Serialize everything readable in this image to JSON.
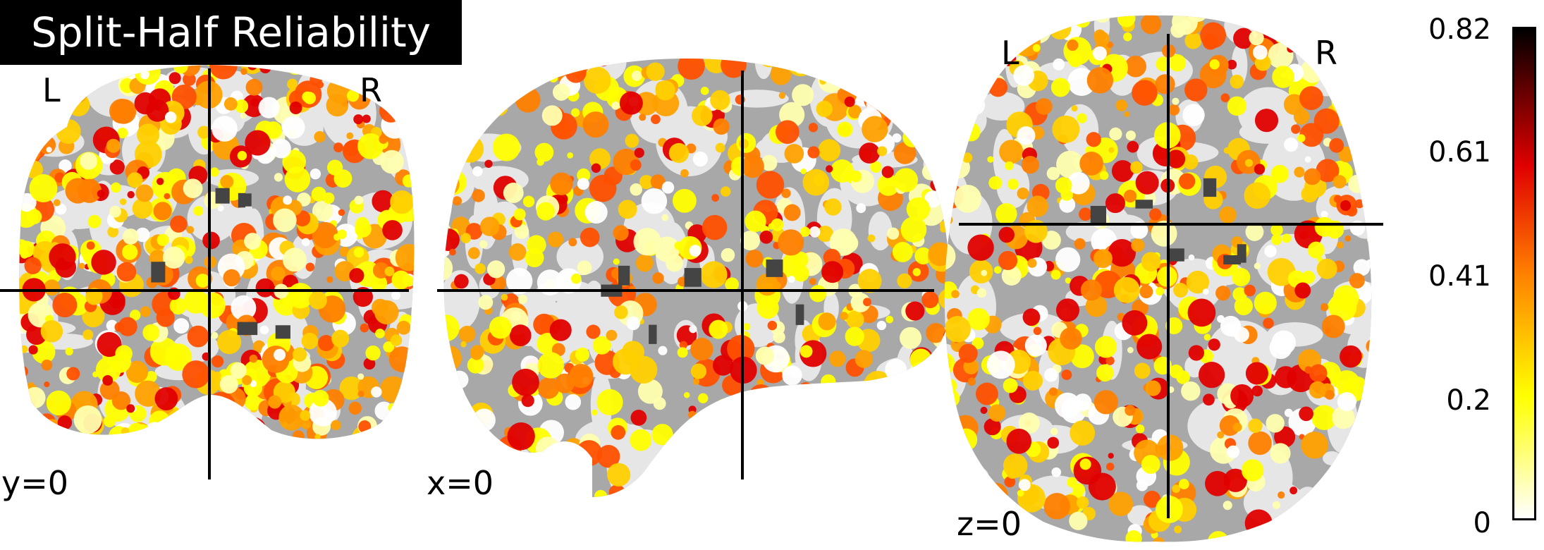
{
  "title": "Split-Half Reliability",
  "views": [
    {
      "name": "coronal",
      "slice_label": "y=0",
      "left_marker": "L",
      "right_marker": "R"
    },
    {
      "name": "sagittal",
      "slice_label": "x=0"
    },
    {
      "name": "axial",
      "slice_label": "z=0",
      "left_marker": "L",
      "right_marker": "R"
    }
  ],
  "colorbar": {
    "colormap": "hot_r",
    "min": 0,
    "max": 0.82,
    "tick_labels": [
      "0.82",
      "0.61",
      "0.41",
      "0.2",
      "0"
    ],
    "colors": {
      "low": "#ffffff",
      "mid_low": "#ffff00",
      "mid": "#ff8000",
      "mid_high": "#e00000",
      "high": "#000000"
    }
  },
  "crosshair_color": "#000000",
  "background_colors": {
    "white_matter": "#e6e6e6",
    "gray_matter": "#a8a8a8",
    "csf": "#444444"
  }
}
